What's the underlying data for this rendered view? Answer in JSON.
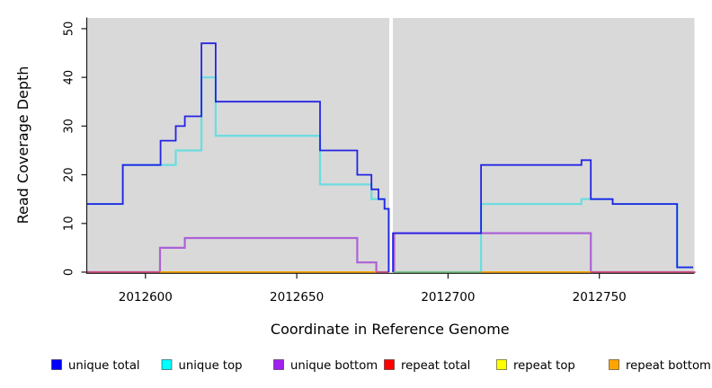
{
  "chart_data": {
    "type": "line",
    "subtype": "step-coverage",
    "title": "",
    "xlabel": "Coordinate in Reference Genome",
    "ylabel": "Read Coverage Depth",
    "xlim": [
      2012580.6,
      2012781
    ],
    "ylim": [
      0,
      52.2
    ],
    "xticks": [
      2012600,
      2012650,
      2012700,
      2012750
    ],
    "yticks": [
      0,
      10,
      20,
      30,
      40,
      50
    ],
    "grid": false,
    "plot_bg_color": "#d9d9d9",
    "axis_color": "#1a1a1a",
    "gap_band": {
      "x0": 2012680.6,
      "x1": 2012681.7,
      "color": "#ffffff"
    },
    "series": [
      {
        "name": "unique total",
        "legend_color": "#0000ff",
        "line_color": "#2424e4",
        "line_width": 1.8,
        "segments": [
          [
            [
              2012580.6,
              14
            ],
            [
              2012592.5,
              22
            ],
            [
              2012605,
              27
            ],
            [
              2012610,
              30
            ],
            [
              2012613,
              32
            ],
            [
              2012618.5,
              47
            ],
            [
              2012623.2,
              35
            ],
            [
              2012657.7,
              25
            ],
            [
              2012670,
              20
            ],
            [
              2012674.7,
              17
            ],
            [
              2012677,
              15
            ],
            [
              2012679,
              13
            ],
            [
              2012680.4,
              0
            ]
          ],
          [
            [
              2012681.8,
              0
            ],
            [
              2012681.8,
              8
            ],
            [
              2012710.9,
              22
            ],
            [
              2012744.1,
              23
            ],
            [
              2012747.2,
              15
            ],
            [
              2012754.4,
              14
            ],
            [
              2012775.7,
              1
            ],
            [
              2012781,
              1
            ]
          ]
        ]
      },
      {
        "name": "unique top",
        "legend_color": "#00ffff",
        "line_color": "#6fdcdf",
        "line_width": 2.3,
        "segments": [
          [
            [
              2012580.6,
              14
            ],
            [
              2012592.5,
              22
            ],
            [
              2012610,
              25
            ],
            [
              2012618.5,
              40
            ],
            [
              2012623.2,
              28
            ],
            [
              2012657.7,
              18
            ],
            [
              2012674.7,
              15
            ],
            [
              2012679,
              13
            ],
            [
              2012680.4,
              0
            ]
          ],
          [
            [
              2012681.8,
              0
            ],
            [
              2012710.9,
              14
            ],
            [
              2012744.1,
              15
            ],
            [
              2012754.4,
              14
            ],
            [
              2012775.7,
              1
            ],
            [
              2012781,
              1
            ]
          ]
        ]
      },
      {
        "name": "unique bottom",
        "legend_color": "#a020f0",
        "line_color": "#ad62d6",
        "line_width": 2.2,
        "segments": [
          [
            [
              2012580.6,
              0
            ],
            [
              2012604.8,
              5
            ],
            [
              2012613,
              7
            ],
            [
              2012670,
              2
            ],
            [
              2012676.3,
              0
            ],
            [
              2012680.4,
              0
            ]
          ],
          [
            [
              2012682.2,
              0
            ],
            [
              2012682.2,
              8
            ],
            [
              2012747.2,
              0
            ],
            [
              2012781,
              0
            ]
          ]
        ]
      },
      {
        "name": "repeat total",
        "legend_color": "#ff0000",
        "line_color": "#ff0000",
        "line_width": 1.2,
        "segments": [
          [
            [
              2012580.6,
              0
            ],
            [
              2012680.4,
              0
            ]
          ],
          [
            [
              2012681.8,
              0
            ],
            [
              2012781,
              0
            ]
          ]
        ]
      },
      {
        "name": "repeat top",
        "legend_color": "#ffff00",
        "line_color": "#ffff00",
        "line_width": 1.2,
        "segments": [
          [
            [
              2012580.6,
              0
            ],
            [
              2012680.4,
              0
            ]
          ],
          [
            [
              2012681.8,
              0
            ],
            [
              2012781,
              0
            ]
          ]
        ]
      },
      {
        "name": "repeat bottom",
        "legend_color": "#ffa500",
        "line_color": "#ffa500",
        "line_width": 1.2,
        "segments": [
          [
            [
              2012580.6,
              0
            ],
            [
              2012680.4,
              0
            ]
          ],
          [
            [
              2012681.8,
              0
            ],
            [
              2012781,
              0
            ]
          ]
        ]
      }
    ],
    "baseline_visible_segments": [
      {
        "x0": 2012580.6,
        "x1": 2012604.8,
        "color": "#d94f7d"
      },
      {
        "x0": 2012604.8,
        "x1": 2012676.3,
        "color": "#ffa500"
      },
      {
        "x0": 2012676.3,
        "x1": 2012680.4,
        "color": "#d94f7d"
      },
      {
        "x0": 2012681.8,
        "x1": 2012710.9,
        "color": "#7cc57c"
      },
      {
        "x0": 2012710.9,
        "x1": 2012747.2,
        "color": "#ffa500"
      },
      {
        "x0": 2012747.2,
        "x1": 2012781.8,
        "color": "#d94f7d"
      }
    ],
    "legend": {
      "position": "bottom",
      "entries": [
        "unique total",
        "unique top",
        "unique bottom",
        "repeat total",
        "repeat top",
        "repeat bottom"
      ]
    }
  }
}
